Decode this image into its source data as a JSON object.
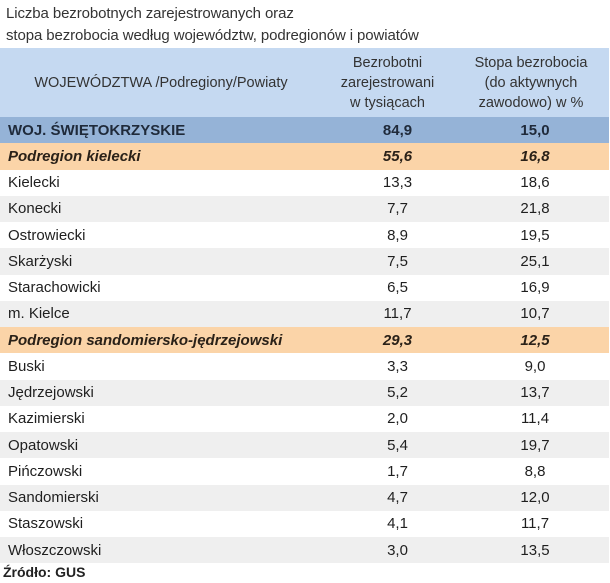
{
  "title": {
    "line1": "Liczba bezrobotnych zarejestrowanych oraz",
    "line2": "stopa bezrobocia według województw, podregionów  i  powiatów"
  },
  "header": {
    "col1": "WOJEWÓDZTWA /Podregiony/Powiaty",
    "col2": [
      "Bezrobotni",
      "zarejestrowani",
      "w tysiącach"
    ],
    "col3": [
      "Stopa bezrobocia",
      "(do aktywnych",
      "zawodowo) w %"
    ]
  },
  "colors": {
    "header_bg": "#c5d9f1",
    "region_bg": "#95b3d7",
    "subregion_bg": "#fbd4a8",
    "row_alt_bg": "#efefef"
  },
  "rows": [
    {
      "type": "region",
      "name": "WOJ. ŚWIĘTOKRZYSKIE",
      "unemployed": "84,9",
      "rate": "15,0"
    },
    {
      "type": "sub",
      "name": "Podregion kielecki",
      "unemployed": "55,6",
      "rate": "16,8"
    },
    {
      "type": "odd",
      "name": "Kielecki",
      "unemployed": "13,3",
      "rate": "18,6"
    },
    {
      "type": "even",
      "name": "Konecki",
      "unemployed": "7,7",
      "rate": "21,8"
    },
    {
      "type": "odd",
      "name": "Ostrowiecki",
      "unemployed": "8,9",
      "rate": "19,5"
    },
    {
      "type": "even",
      "name": "Skarżyski",
      "unemployed": "7,5",
      "rate": "25,1"
    },
    {
      "type": "odd",
      "name": "Starachowicki",
      "unemployed": "6,5",
      "rate": "16,9"
    },
    {
      "type": "even",
      "name": "m. Kielce",
      "unemployed": "11,7",
      "rate": "10,7"
    },
    {
      "type": "sub",
      "name": "Podregion sandomiersko-jędrzejowski",
      "unemployed": "29,3",
      "rate": "12,5"
    },
    {
      "type": "odd",
      "name": "Buski",
      "unemployed": "3,3",
      "rate": "9,0"
    },
    {
      "type": "even",
      "name": "Jędrzejowski",
      "unemployed": "5,2",
      "rate": "13,7"
    },
    {
      "type": "odd",
      "name": "Kazimierski",
      "unemployed": "2,0",
      "rate": "11,4"
    },
    {
      "type": "even",
      "name": "Opatowski",
      "unemployed": "5,4",
      "rate": "19,7"
    },
    {
      "type": "odd",
      "name": "Pińczowski",
      "unemployed": "1,7",
      "rate": "8,8"
    },
    {
      "type": "even",
      "name": "Sandomierski",
      "unemployed": "4,7",
      "rate": "12,0"
    },
    {
      "type": "odd",
      "name": "Staszowski",
      "unemployed": "4,1",
      "rate": "11,7"
    },
    {
      "type": "even",
      "name": "Włoszczowski",
      "unemployed": "3,0",
      "rate": "13,5"
    }
  ],
  "source": "Źródło: GUS"
}
